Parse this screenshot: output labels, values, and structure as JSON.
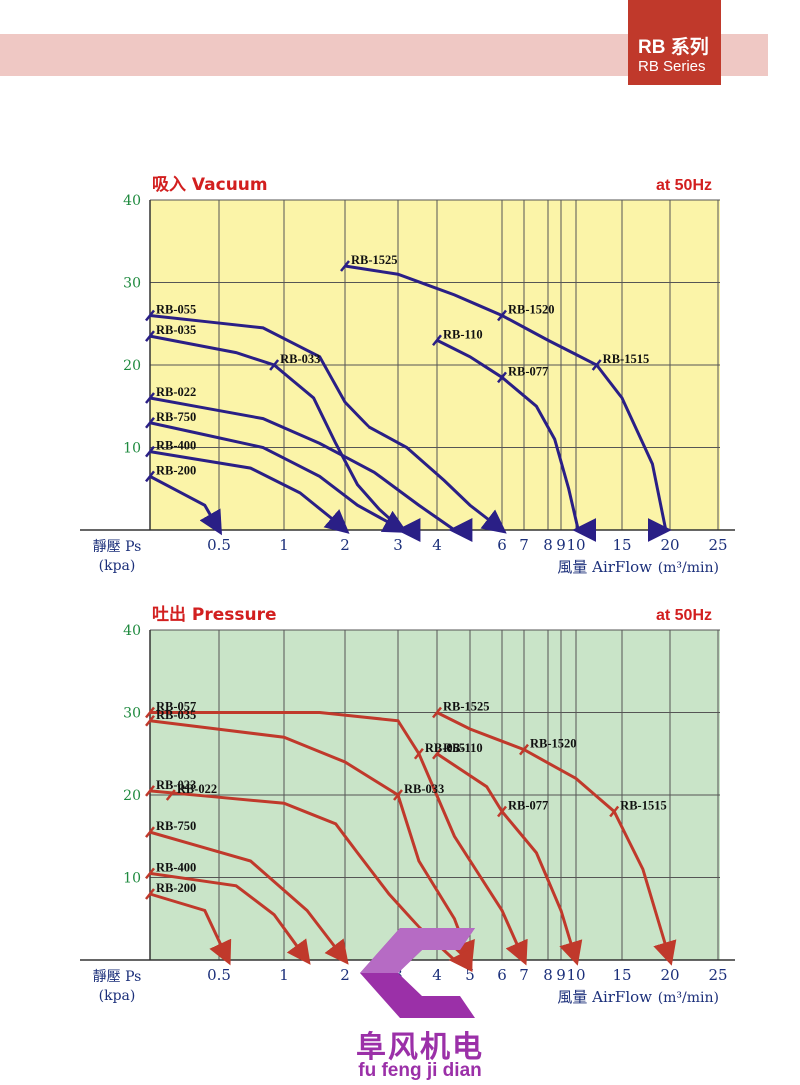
{
  "header": {
    "series_cn": "RB 系列",
    "series_en": "RB Series"
  },
  "brand": {
    "name": "阜风机电",
    "pinyin": "fu feng ji dian"
  },
  "colors": {
    "banner": "#efc8c4",
    "tag": "#c0392b",
    "vacuum_bg": "#fbf4a8",
    "pressure_bg": "#c9e4c8",
    "vacuum_curve": "#2a1f86",
    "pressure_curve": "#c0392b",
    "title": "#d21f1f",
    "axis_text": "#1b2f7a",
    "ytick": "#1f8a3f"
  },
  "chart_data": [
    {
      "type": "line",
      "title": "吸入 Vacuum",
      "title_right": "at 50Hz",
      "ylabel": "靜壓 Ps",
      "ylabel_unit": "(kpa)",
      "xlabel": "風量 AirFlow",
      "xlabel_unit": "(m³/min)",
      "x_scale": "log",
      "x_ticks": [
        "0.5",
        "1",
        "2",
        "3",
        "4",
        "6",
        "7",
        "8",
        "9",
        "10",
        "15",
        "20",
        "25"
      ],
      "y_ticks": [
        "40",
        "30",
        "20",
        "10"
      ],
      "ylim": [
        0,
        40
      ],
      "grid": true,
      "series": [
        {
          "name": "RB-1525",
          "x": [
            2.0,
            3.0,
            4.5,
            6.0,
            8.0,
            12.0,
            15.0,
            18.0,
            19.5
          ],
          "y": [
            32,
            31,
            28.5,
            26,
            23,
            20,
            16,
            8,
            0
          ]
        },
        {
          "name": "RB-1520",
          "x": [
            6.0
          ],
          "y": [
            26
          ]
        },
        {
          "name": "RB-1515",
          "x": [
            12.0
          ],
          "y": [
            20
          ]
        },
        {
          "name": "RB-110",
          "x": [
            4.0,
            5.0,
            6.0,
            7.5,
            8.5,
            9.5,
            10.2
          ],
          "y": [
            23,
            21,
            18.5,
            15,
            11,
            5,
            0
          ]
        },
        {
          "name": "RB-077",
          "x": [
            6.0
          ],
          "y": [
            18.5
          ]
        },
        {
          "name": "RB-055",
          "x": [
            0.3,
            0.8,
            1.5,
            2.0,
            2.4,
            3.2,
            4.2,
            5.0,
            6.0
          ],
          "y": [
            26,
            24.5,
            21,
            15.5,
            12.5,
            10,
            6,
            3,
            0
          ]
        },
        {
          "name": "RB-035",
          "x": [
            0.3,
            0.6,
            0.9,
            1.4,
            1.8,
            2.2,
            2.6,
            3.1
          ],
          "y": [
            23.5,
            21.5,
            20,
            16,
            10.5,
            5.5,
            2.5,
            0
          ]
        },
        {
          "name": "RB-033",
          "x": [
            0.9
          ],
          "y": [
            20
          ]
        },
        {
          "name": "RB-022",
          "x": [
            0.3,
            0.8,
            1.5,
            2.5,
            3.5,
            4.5
          ],
          "y": [
            16,
            13.5,
            10.5,
            7,
            3,
            0
          ]
        },
        {
          "name": "RB-750",
          "x": [
            0.3,
            0.8,
            1.5,
            2.2,
            3.1
          ],
          "y": [
            13,
            10,
            6.5,
            3,
            0
          ]
        },
        {
          "name": "RB-400",
          "x": [
            0.3,
            0.7,
            1.2,
            1.7,
            2.0
          ],
          "y": [
            9.5,
            7.5,
            4.5,
            1.5,
            0
          ]
        },
        {
          "name": "RB-200",
          "x": [
            0.3,
            0.45,
            0.5
          ],
          "y": [
            6.5,
            3,
            0
          ]
        }
      ]
    },
    {
      "type": "line",
      "title": "吐出 Pressure",
      "title_right": "at 50Hz",
      "ylabel": "靜壓 Ps",
      "ylabel_unit": "(kpa)",
      "xlabel": "風量 AirFlow",
      "xlabel_unit": "(m³/min)",
      "x_scale": "log",
      "x_ticks": [
        "0.5",
        "1",
        "2",
        "3",
        "4",
        "5",
        "6",
        "7",
        "8",
        "9",
        "10",
        "15",
        "20",
        "25"
      ],
      "y_ticks": [
        "40",
        "30",
        "20",
        "10"
      ],
      "ylim": [
        0,
        40
      ],
      "grid": true,
      "series": [
        {
          "name": "RB-1525",
          "x": [
            4.0,
            5.0,
            7.0,
            10.0,
            14.0,
            17.0,
            20.0
          ],
          "y": [
            30,
            28,
            25.5,
            22,
            18,
            11,
            0
          ]
        },
        {
          "name": "RB-1520",
          "x": [
            7.0
          ],
          "y": [
            25.5
          ]
        },
        {
          "name": "RB-1515",
          "x": [
            14.0
          ],
          "y": [
            18
          ]
        },
        {
          "name": "RB-110",
          "x": [
            4.0,
            5.5,
            6.0,
            7.5,
            9.0,
            10.0
          ],
          "y": [
            25,
            21,
            18,
            13,
            6,
            0
          ]
        },
        {
          "name": "RB-077",
          "x": [
            6.0
          ],
          "y": [
            18
          ]
        },
        {
          "name": "RB-057",
          "x": [
            0.3,
            1.5,
            3.0,
            3.5,
            4.5,
            6.0,
            7.0
          ],
          "y": [
            30,
            30,
            29,
            25,
            15,
            6,
            0
          ]
        },
        {
          "name": "RB-055",
          "x": [
            3.5
          ],
          "y": [
            25
          ]
        },
        {
          "name": "RB-035",
          "x": [
            0.3,
            1.0,
            2.0,
            3.0,
            3.5,
            4.5,
            5.0
          ],
          "y": [
            29,
            27,
            24,
            20,
            12,
            5,
            0
          ]
        },
        {
          "name": "RB-033",
          "x": [
            3.0
          ],
          "y": [
            20
          ]
        },
        {
          "name": "RB-023",
          "x": [
            0.3,
            1.0,
            1.8,
            2.2,
            2.8,
            3.5,
            4.5
          ],
          "y": [
            20.5,
            19,
            16.5,
            13,
            8,
            4,
            0
          ]
        },
        {
          "name": "RB-022",
          "x": [
            0.35
          ],
          "y": [
            20
          ]
        },
        {
          "name": "RB-750",
          "x": [
            0.3,
            0.7,
            1.3,
            2.0
          ],
          "y": [
            15.5,
            12,
            6,
            0
          ]
        },
        {
          "name": "RB-400",
          "x": [
            0.3,
            0.6,
            0.9,
            1.3
          ],
          "y": [
            10.5,
            9,
            5.5,
            0
          ]
        },
        {
          "name": "RB-200",
          "x": [
            0.3,
            0.45,
            0.55
          ],
          "y": [
            8,
            6,
            0
          ]
        }
      ]
    }
  ]
}
